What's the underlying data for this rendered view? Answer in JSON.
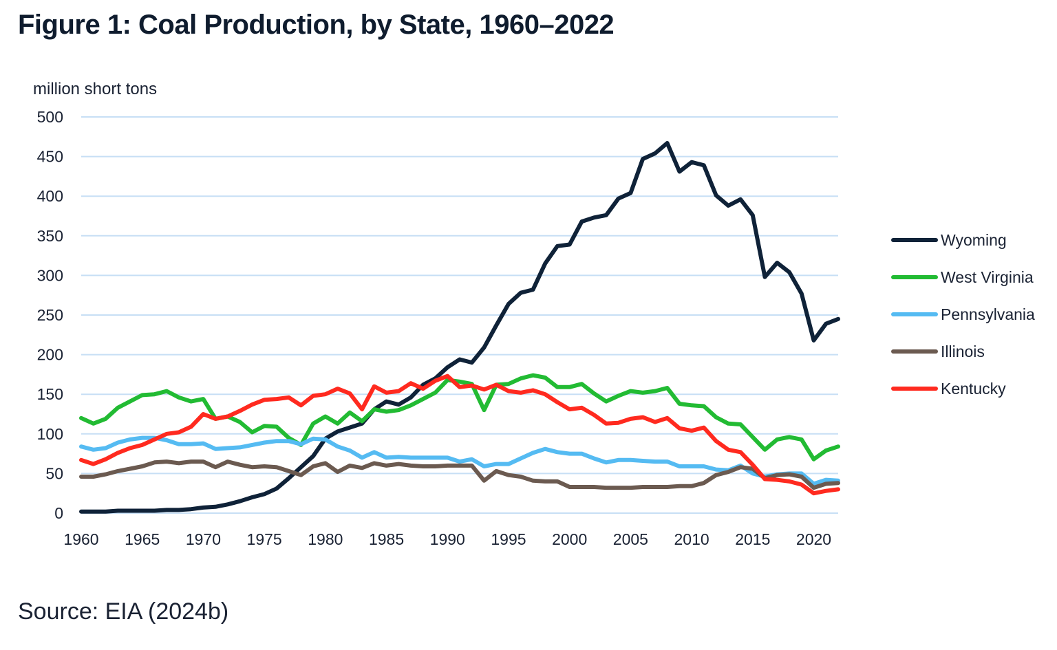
{
  "title": "Figure 1: Coal Production, by State, 1960–2022",
  "source": "Source: EIA (2024b)",
  "chart_data": {
    "type": "line",
    "title": "Figure 1: Coal Production, by State, 1960–2022",
    "xlabel": "",
    "ylabel": "million short tons",
    "xlim": [
      1960,
      2022
    ],
    "ylim": [
      0,
      500
    ],
    "grid": true,
    "legend_position": "right",
    "x_ticks": [
      1960,
      1965,
      1970,
      1975,
      1980,
      1985,
      1990,
      1995,
      2000,
      2005,
      2010,
      2015,
      2020
    ],
    "y_ticks": [
      0,
      50,
      100,
      150,
      200,
      250,
      300,
      350,
      400,
      450,
      500
    ],
    "x": [
      1960,
      1961,
      1962,
      1963,
      1964,
      1965,
      1966,
      1967,
      1968,
      1969,
      1970,
      1971,
      1972,
      1973,
      1974,
      1975,
      1976,
      1977,
      1978,
      1979,
      1980,
      1981,
      1982,
      1983,
      1984,
      1985,
      1986,
      1987,
      1988,
      1989,
      1990,
      1991,
      1992,
      1993,
      1994,
      1995,
      1996,
      1997,
      1998,
      1999,
      2000,
      2001,
      2002,
      2003,
      2004,
      2005,
      2006,
      2007,
      2008,
      2009,
      2010,
      2011,
      2012,
      2013,
      2014,
      2015,
      2016,
      2017,
      2018,
      2019,
      2020,
      2021,
      2022
    ],
    "series": [
      {
        "name": "Wyoming",
        "color": "#0f2238",
        "values": [
          2,
          2,
          2,
          3,
          3,
          3,
          3,
          4,
          4,
          5,
          7,
          8,
          11,
          15,
          20,
          24,
          31,
          44,
          58,
          72,
          94,
          103,
          108,
          113,
          131,
          141,
          137,
          146,
          162,
          170,
          184,
          194,
          190,
          209,
          237,
          264,
          278,
          282,
          315,
          337,
          339,
          368,
          373,
          376,
          397,
          404,
          447,
          454,
          467,
          431,
          443,
          439,
          401,
          388,
          396,
          376,
          298,
          316,
          304,
          277,
          218,
          239,
          245
        ]
      },
      {
        "name": "West Virginia",
        "color": "#22bb33",
        "values": [
          120,
          113,
          119,
          133,
          141,
          149,
          150,
          154,
          146,
          141,
          144,
          119,
          122,
          115,
          102,
          110,
          109,
          95,
          86,
          113,
          122,
          113,
          127,
          116,
          131,
          128,
          130,
          136,
          144,
          152,
          168,
          166,
          163,
          130,
          162,
          163,
          170,
          174,
          171,
          159,
          159,
          163,
          151,
          141,
          148,
          154,
          152,
          154,
          158,
          138,
          136,
          135,
          121,
          113,
          112,
          96,
          80,
          93,
          96,
          93,
          68,
          79,
          84
        ]
      },
      {
        "name": "Pennsylvania",
        "color": "#55bbf2",
        "values": [
          84,
          80,
          82,
          89,
          93,
          95,
          95,
          92,
          87,
          87,
          88,
          81,
          82,
          83,
          86,
          89,
          91,
          91,
          87,
          94,
          93,
          84,
          79,
          70,
          77,
          70,
          71,
          70,
          70,
          70,
          70,
          65,
          68,
          59,
          62,
          62,
          69,
          76,
          81,
          77,
          75,
          75,
          69,
          64,
          67,
          67,
          66,
          65,
          65,
          59,
          59,
          59,
          55,
          54,
          60,
          50,
          46,
          49,
          50,
          50,
          37,
          42,
          41
        ]
      },
      {
        "name": "Illinois",
        "color": "#6b5a50",
        "values": [
          46,
          46,
          49,
          53,
          56,
          59,
          64,
          65,
          63,
          65,
          65,
          58,
          65,
          61,
          58,
          59,
          58,
          53,
          48,
          59,
          63,
          52,
          60,
          57,
          63,
          60,
          62,
          60,
          59,
          59,
          60,
          60,
          60,
          41,
          53,
          48,
          46,
          41,
          40,
          40,
          33,
          33,
          33,
          32,
          32,
          32,
          33,
          33,
          33,
          34,
          34,
          38,
          48,
          52,
          58,
          56,
          44,
          48,
          49,
          46,
          32,
          37,
          38
        ]
      },
      {
        "name": "Kentucky",
        "color": "#ff2a1f",
        "values": [
          67,
          62,
          68,
          76,
          82,
          86,
          93,
          100,
          102,
          109,
          125,
          119,
          122,
          129,
          137,
          143,
          144,
          146,
          136,
          148,
          150,
          157,
          151,
          131,
          160,
          152,
          154,
          164,
          157,
          167,
          173,
          159,
          161,
          156,
          162,
          154,
          152,
          155,
          150,
          140,
          131,
          133,
          124,
          113,
          114,
          119,
          121,
          115,
          120,
          107,
          104,
          108,
          91,
          80,
          77,
          61,
          43,
          42,
          40,
          36,
          25,
          28,
          30
        ]
      }
    ]
  }
}
